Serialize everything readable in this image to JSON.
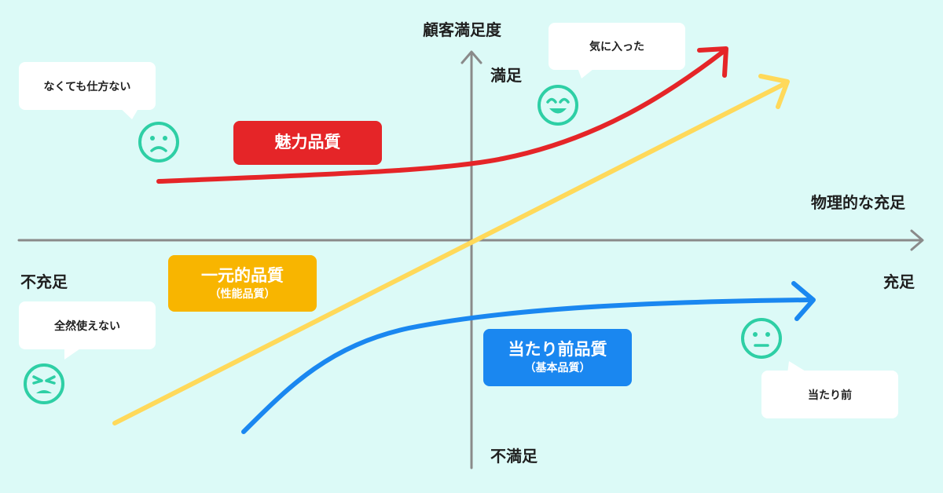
{
  "axes": {
    "y_title": "顧客満足度",
    "y_top": "満足",
    "y_bottom": "不満足",
    "x_title": "物理的な充足",
    "x_left": "不充足",
    "x_right": "充足"
  },
  "qualities": {
    "attractive": {
      "label": "魅力品質",
      "color": "#e52528"
    },
    "one_dimensional": {
      "label": "一元的品質",
      "sub": "（性能品質）",
      "color": "#f8b500",
      "line_color": "#ffd95a"
    },
    "must_be": {
      "label": "当たり前品質",
      "sub": "（基本品質）",
      "color": "#1a87f0"
    }
  },
  "bubbles": {
    "unsatisfied_attractive": "なくても仕方ない",
    "liked": "気に入った",
    "unusable": "全然使えない",
    "taken_for_granted": "当たり前"
  },
  "colors": {
    "background": "#dcfaf7",
    "axis": "#8a8a8a",
    "face": "#2ecfa5"
  },
  "icons": {
    "face_sad": "sad-face-icon",
    "face_happy": "happy-face-icon",
    "face_angry": "angry-face-icon",
    "face_neutral": "neutral-face-icon"
  }
}
